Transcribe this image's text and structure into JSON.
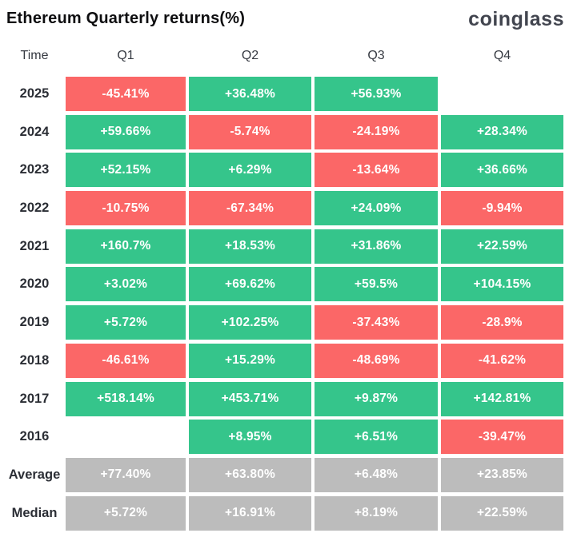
{
  "header": {
    "title": "Ethereum Quarterly returns(%)",
    "logo": "coinglass"
  },
  "colors": {
    "positive_green": "#35c58b",
    "negative_red": "#fb6767",
    "neutral_gray": "#bcbcbc",
    "cell_text": "#ffffff"
  },
  "table": {
    "columns": [
      "Time",
      "Q1",
      "Q2",
      "Q3",
      "Q4"
    ],
    "rows": [
      {
        "label": "2025",
        "cells": [
          {
            "value": "-45.41%",
            "color": "red"
          },
          {
            "value": "+36.48%",
            "color": "green"
          },
          {
            "value": "+56.93%",
            "color": "green"
          },
          {
            "value": "",
            "color": "none"
          }
        ]
      },
      {
        "label": "2024",
        "cells": [
          {
            "value": "+59.66%",
            "color": "green"
          },
          {
            "value": "-5.74%",
            "color": "red"
          },
          {
            "value": "-24.19%",
            "color": "red"
          },
          {
            "value": "+28.34%",
            "color": "green"
          }
        ]
      },
      {
        "label": "2023",
        "cells": [
          {
            "value": "+52.15%",
            "color": "green"
          },
          {
            "value": "+6.29%",
            "color": "green"
          },
          {
            "value": "-13.64%",
            "color": "red"
          },
          {
            "value": "+36.66%",
            "color": "green"
          }
        ]
      },
      {
        "label": "2022",
        "cells": [
          {
            "value": "-10.75%",
            "color": "red"
          },
          {
            "value": "-67.34%",
            "color": "red"
          },
          {
            "value": "+24.09%",
            "color": "green"
          },
          {
            "value": "-9.94%",
            "color": "red"
          }
        ]
      },
      {
        "label": "2021",
        "cells": [
          {
            "value": "+160.7%",
            "color": "green"
          },
          {
            "value": "+18.53%",
            "color": "green"
          },
          {
            "value": "+31.86%",
            "color": "green"
          },
          {
            "value": "+22.59%",
            "color": "green"
          }
        ]
      },
      {
        "label": "2020",
        "cells": [
          {
            "value": "+3.02%",
            "color": "green"
          },
          {
            "value": "+69.62%",
            "color": "green"
          },
          {
            "value": "+59.5%",
            "color": "green"
          },
          {
            "value": "+104.15%",
            "color": "green"
          }
        ]
      },
      {
        "label": "2019",
        "cells": [
          {
            "value": "+5.72%",
            "color": "green"
          },
          {
            "value": "+102.25%",
            "color": "green"
          },
          {
            "value": "-37.43%",
            "color": "red"
          },
          {
            "value": "-28.9%",
            "color": "red"
          }
        ]
      },
      {
        "label": "2018",
        "cells": [
          {
            "value": "-46.61%",
            "color": "red"
          },
          {
            "value": "+15.29%",
            "color": "green"
          },
          {
            "value": "-48.69%",
            "color": "red"
          },
          {
            "value": "-41.62%",
            "color": "red"
          }
        ]
      },
      {
        "label": "2017",
        "cells": [
          {
            "value": "+518.14%",
            "color": "green"
          },
          {
            "value": "+453.71%",
            "color": "green"
          },
          {
            "value": "+9.87%",
            "color": "green"
          },
          {
            "value": "+142.81%",
            "color": "green"
          }
        ]
      },
      {
        "label": "2016",
        "cells": [
          {
            "value": "",
            "color": "none"
          },
          {
            "value": "+8.95%",
            "color": "green"
          },
          {
            "value": "+6.51%",
            "color": "green"
          },
          {
            "value": "-39.47%",
            "color": "red"
          }
        ]
      },
      {
        "label": "Average",
        "cells": [
          {
            "value": "+77.40%",
            "color": "gray"
          },
          {
            "value": "+63.80%",
            "color": "gray"
          },
          {
            "value": "+6.48%",
            "color": "gray"
          },
          {
            "value": "+23.85%",
            "color": "gray"
          }
        ]
      },
      {
        "label": "Median",
        "cells": [
          {
            "value": "+5.72%",
            "color": "gray"
          },
          {
            "value": "+16.91%",
            "color": "gray"
          },
          {
            "value": "+8.19%",
            "color": "gray"
          },
          {
            "value": "+22.59%",
            "color": "gray"
          }
        ]
      }
    ]
  },
  "chart_data": {
    "type": "heatmap",
    "title": "Ethereum Quarterly returns(%)",
    "source_brand": "coinglass",
    "columns": [
      "Q1",
      "Q2",
      "Q3",
      "Q4"
    ],
    "row_labels": [
      "2025",
      "2024",
      "2023",
      "2022",
      "2021",
      "2020",
      "2019",
      "2018",
      "2017",
      "2016",
      "Average",
      "Median"
    ],
    "values_percent": [
      [
        -45.41,
        36.48,
        56.93,
        null
      ],
      [
        59.66,
        -5.74,
        -24.19,
        28.34
      ],
      [
        52.15,
        6.29,
        -13.64,
        36.66
      ],
      [
        -10.75,
        -67.34,
        24.09,
        -9.94
      ],
      [
        160.7,
        18.53,
        31.86,
        22.59
      ],
      [
        3.02,
        69.62,
        59.5,
        104.15
      ],
      [
        5.72,
        102.25,
        -37.43,
        -28.9
      ],
      [
        -46.61,
        15.29,
        -48.69,
        -41.62
      ],
      [
        518.14,
        453.71,
        9.87,
        142.81
      ],
      [
        null,
        8.95,
        6.51,
        -39.47
      ],
      [
        77.4,
        63.8,
        6.48,
        23.85
      ],
      [
        5.72,
        16.91,
        8.19,
        22.59
      ]
    ],
    "legend": "green = positive return, red = negative return, gray = summary rows (Average/Median)",
    "layout": "matrix table, years descending top to bottom, summary rows at bottom"
  }
}
